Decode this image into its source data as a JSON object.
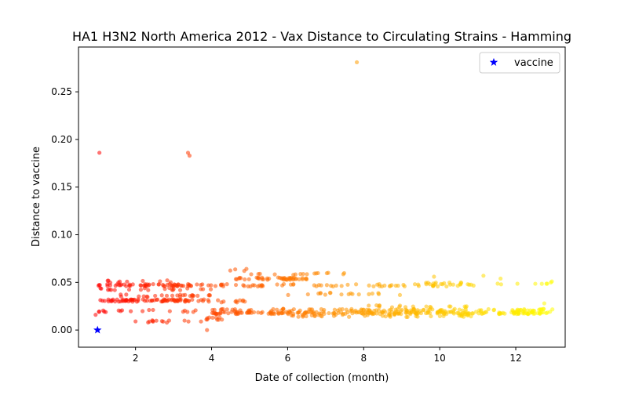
{
  "chart_data": {
    "type": "scatter",
    "title": "HA1 H3N2 North America 2012 - Vax Distance to Circulating Strains - Hamming",
    "xlabel": "Date of collection (month)",
    "ylabel": "Distance to vaccine",
    "xlim": [
      0.5,
      13.3
    ],
    "ylim": [
      -0.018,
      0.297
    ],
    "xticks": [
      2,
      4,
      6,
      8,
      10,
      12
    ],
    "xtick_labels": [
      "2",
      "4",
      "6",
      "8",
      "10",
      "12"
    ],
    "yticks": [
      0.0,
      0.05,
      0.1,
      0.15,
      0.2,
      0.25
    ],
    "ytick_labels": [
      "0.00",
      "0.05",
      "0.10",
      "0.15",
      "0.20",
      "0.25"
    ],
    "grid": false,
    "legend": {
      "position": "top-right",
      "entries": [
        "vaccine"
      ]
    },
    "colormap": {
      "from": "#ff0000",
      "via": "#ff8c00",
      "to": "#ffff00",
      "basis": "date"
    },
    "series": [
      {
        "name": "vaccine",
        "marker": "star",
        "color": "#0000ff",
        "points": [
          [
            1.0,
            0.0
          ]
        ]
      },
      {
        "marker": "circle",
        "alpha": 0.55,
        "bands": [
          {
            "x_start": 1.0,
            "x_end": 4.0,
            "y": 0.047,
            "count": 60
          },
          {
            "x_start": 1.0,
            "x_end": 4.0,
            "y": 0.031,
            "count": 80
          },
          {
            "x_start": 1.5,
            "x_end": 4.0,
            "y": 0.036,
            "count": 25
          },
          {
            "x_start": 1.0,
            "x_end": 4.0,
            "y": 0.043,
            "count": 20
          },
          {
            "x_start": 1.0,
            "x_end": 3.8,
            "y": 0.02,
            "count": 18
          },
          {
            "x_start": 1.7,
            "x_end": 3.8,
            "y": 0.009,
            "count": 14
          },
          {
            "x_start": 1.0,
            "x_end": 3.0,
            "y": 0.051,
            "count": 10
          },
          {
            "x_start": 4.0,
            "x_end": 13.0,
            "y": 0.018,
            "count": 220
          },
          {
            "x_start": 4.0,
            "x_end": 13.0,
            "y": 0.021,
            "count": 110
          },
          {
            "x_start": 6.0,
            "x_end": 11.0,
            "y": 0.015,
            "count": 40
          },
          {
            "x_start": 4.0,
            "x_end": 11.0,
            "y": 0.047,
            "count": 70
          },
          {
            "x_start": 4.5,
            "x_end": 6.5,
            "y": 0.054,
            "count": 45
          },
          {
            "x_start": 5.0,
            "x_end": 7.5,
            "y": 0.059,
            "count": 16
          },
          {
            "x_start": 6.0,
            "x_end": 9.0,
            "y": 0.038,
            "count": 18
          },
          {
            "x_start": 9.0,
            "x_end": 13.0,
            "y": 0.049,
            "count": 20
          },
          {
            "x_start": 8.0,
            "x_end": 11.0,
            "y": 0.025,
            "count": 18
          },
          {
            "x_start": 3.8,
            "x_end": 4.3,
            "y": 0.012,
            "count": 10
          },
          {
            "x_start": 4.2,
            "x_end": 5.2,
            "y": 0.063,
            "count": 4
          },
          {
            "x_start": 4.0,
            "x_end": 5.0,
            "y": 0.03,
            "count": 10
          }
        ],
        "outliers": [
          [
            0.95,
            0.016
          ],
          [
            1.05,
            0.186
          ],
          [
            3.38,
            0.186
          ],
          [
            3.42,
            0.183
          ],
          [
            7.82,
            0.281
          ],
          [
            3.88,
            0.0
          ],
          [
            12.75,
            0.028
          ],
          [
            9.85,
            0.056
          ],
          [
            11.15,
            0.057
          ],
          [
            11.6,
            0.054
          ],
          [
            12.95,
            0.051
          ]
        ]
      }
    ]
  }
}
